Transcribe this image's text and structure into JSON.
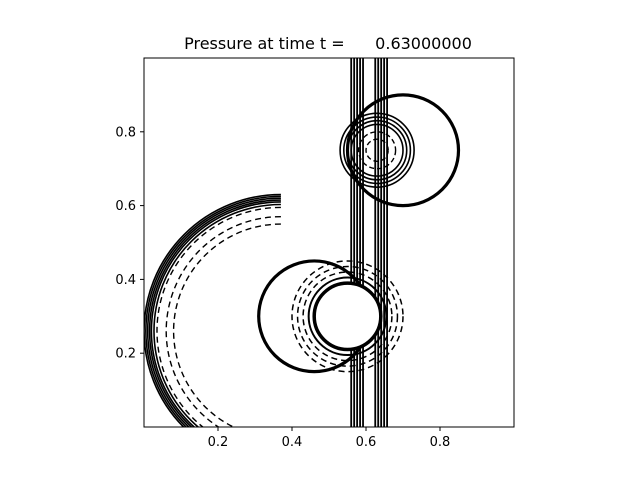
{
  "figure": {
    "title": "Pressure at time t =      0.63000000"
  },
  "chart_data": {
    "type": "contour",
    "title": "Pressure at time t =      0.63000000",
    "xlabel": "",
    "ylabel": "",
    "xlim": [
      0.0,
      1.0
    ],
    "ylim": [
      0.0,
      1.0
    ],
    "x_ticks": [
      0.2,
      0.4,
      0.6,
      0.8
    ],
    "x_tick_labels": [
      "0.2",
      "0.4",
      "0.6",
      "0.8"
    ],
    "y_ticks": [
      0.2,
      0.4,
      0.6,
      0.8
    ],
    "y_tick_labels": [
      "0.2",
      "0.4",
      "0.6",
      "0.8"
    ],
    "grid": false,
    "line_color": "#000000",
    "shapes": {
      "lower_circle": {
        "center": [
          0.46,
          0.3
        ],
        "radius": 0.15
      },
      "upper_circle": {
        "center": [
          0.7,
          0.75
        ],
        "radius": 0.15
      },
      "obstacle": {
        "center": [
          0.55,
          0.3
        ],
        "radius": 0.09
      },
      "upper_ring": {
        "center": [
          0.63,
          0.75
        ],
        "radius": 0.1
      }
    },
    "wave_arcs": {
      "center": [
        0.37,
        0.26
      ],
      "radii": [
        0.37,
        0.365,
        0.36,
        0.355,
        0.35,
        0.343
      ],
      "dashed_radii": [
        0.335,
        0.31,
        0.29
      ],
      "theta_start_deg": 90,
      "theta_end_deg": 270
    },
    "vertical_bands": [
      {
        "x": [
          0.56,
          0.568,
          0.576,
          0.584,
          0.592
        ]
      },
      {
        "x": [
          0.625,
          0.633,
          0.641,
          0.649,
          0.657
        ]
      }
    ]
  }
}
